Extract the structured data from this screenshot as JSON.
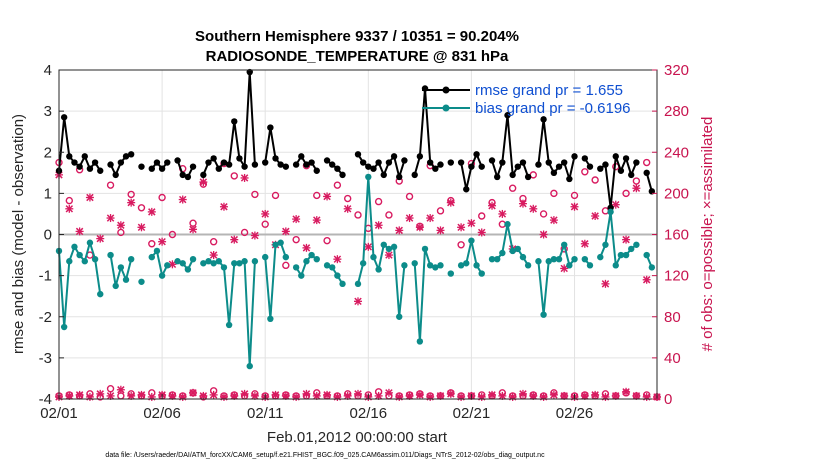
{
  "chart_data": {
    "type": "line",
    "title_line1": "Southern Hemisphere 9337 / 10351 = 90.204%",
    "title_line2": "RADIOSONDE_TEMPERATURE @ 831 hPa",
    "ylabel": "rmse and bias (model - observation)",
    "ylabel_right": "# of obs: o=possible; ×=assimilated",
    "xlabel": "Feb.01,2012 00:00:00 start",
    "footer": "data file: /Users/raeder/DAI/ATM_forcXX/CAM6_setup/f.e21.FHIST_BGC.f09_025.CAM6assim.011/Diags_NTrS_2012-02/obs_diag_output.nc",
    "ylim": [
      -4,
      4
    ],
    "ylim_right": [
      0,
      320
    ],
    "xlim": [
      1,
      30
    ],
    "x_ticks": [
      1,
      6,
      11,
      16,
      21,
      26
    ],
    "x_tick_labels": [
      "02/01",
      "02/06",
      "02/11",
      "02/16",
      "02/21",
      "02/26"
    ],
    "y_ticks": [
      -4,
      -3,
      -2,
      -1,
      0,
      1,
      2,
      3,
      4
    ],
    "y_tick_labels": [
      "-4",
      "-3",
      "-2",
      "-1",
      "0",
      "1",
      "2",
      "3",
      "4"
    ],
    "y_ticks_right": [
      0,
      40,
      80,
      120,
      160,
      200,
      240,
      280,
      320
    ],
    "y_tick_labels_right": [
      "0",
      "40",
      "80",
      "120",
      "160",
      "200",
      "240",
      "280",
      "320"
    ],
    "legend_placement": "top-right",
    "colors": {
      "rmse": "#000000",
      "bias": "#0c8c8a",
      "obs": "#d81b60",
      "zero_line": "#b5b5b5",
      "legend_text": "#0f4fd1"
    },
    "series": [
      {
        "name": "rmse grand pr = 1.655",
        "x": [
          1.0,
          1.25,
          1.5,
          1.75,
          2.0,
          2.25,
          2.5,
          2.75,
          3.0,
          3.5,
          3.75,
          4.0,
          4.25,
          4.5,
          5.0,
          5.5,
          5.75,
          6.0,
          6.25,
          6.75,
          7.0,
          7.25,
          7.5,
          8.0,
          8.25,
          8.5,
          8.75,
          9.0,
          9.25,
          9.5,
          9.75,
          10.0,
          10.25,
          10.5,
          11.0,
          11.25,
          11.5,
          11.75,
          12.0,
          12.5,
          12.75,
          13.0,
          13.25,
          13.5,
          14.0,
          14.25,
          14.5,
          14.75,
          15.5,
          15.75,
          16.0,
          16.25,
          16.5,
          16.75,
          17.0,
          17.25,
          17.5,
          17.75,
          18.25,
          18.5,
          18.75,
          19.0,
          19.25,
          19.5,
          20.0,
          20.5,
          20.75,
          21.0,
          21.25,
          21.5,
          22.0,
          22.25,
          22.5,
          22.75,
          23.0,
          23.25,
          23.5,
          23.75,
          24.25,
          24.5,
          24.75,
          25.0,
          25.25,
          25.5,
          25.75,
          26.0,
          26.5,
          26.75,
          27.25,
          27.5,
          27.75,
          28.0,
          28.25,
          28.5,
          28.75,
          29.0,
          29.5,
          29.75
        ],
        "values": [
          1.55,
          2.85,
          1.9,
          1.75,
          1.65,
          1.9,
          1.6,
          1.75,
          1.55,
          1.7,
          1.45,
          1.75,
          1.9,
          1.95,
          1.65,
          1.6,
          1.75,
          1.6,
          1.75,
          1.8,
          1.45,
          1.4,
          1.65,
          1.45,
          1.75,
          1.85,
          1.6,
          1.75,
          1.7,
          2.75,
          1.85,
          1.65,
          3.95,
          1.7,
          1.75,
          2.6,
          1.85,
          1.7,
          1.65,
          1.7,
          1.9,
          1.7,
          1.75,
          1.55,
          1.8,
          1.7,
          1.6,
          1.45,
          1.95,
          1.75,
          1.65,
          1.6,
          1.75,
          1.45,
          1.75,
          1.9,
          1.4,
          1.8,
          1.45,
          1.9,
          3.55,
          1.75,
          1.6,
          1.7,
          1.75,
          1.75,
          1.1,
          1.65,
          1.95,
          1.65,
          1.8,
          1.4,
          1.75,
          2.9,
          1.45,
          1.65,
          1.75,
          1.4,
          1.7,
          2.8,
          1.75,
          1.5,
          1.65,
          1.75,
          1.35,
          1.9,
          1.85,
          1.65,
          1.6,
          1.7,
          0.65,
          1.9,
          1.55,
          1.85,
          1.45,
          1.75,
          1.5,
          1.05
        ]
      },
      {
        "name": "bias grand pr = -0.6196",
        "x": [
          1.0,
          1.25,
          1.5,
          1.75,
          2.0,
          2.25,
          2.5,
          2.75,
          3.0,
          3.5,
          3.75,
          4.0,
          4.25,
          4.5,
          5.0,
          5.5,
          5.75,
          6.0,
          6.25,
          6.75,
          7.0,
          7.25,
          7.5,
          8.0,
          8.25,
          8.5,
          8.75,
          9.0,
          9.25,
          9.5,
          9.75,
          10.0,
          10.25,
          10.5,
          11.0,
          11.25,
          11.5,
          11.75,
          12.0,
          12.5,
          12.75,
          13.0,
          13.25,
          13.5,
          14.0,
          14.25,
          14.5,
          14.75,
          15.5,
          15.75,
          16.0,
          16.25,
          16.5,
          16.75,
          17.0,
          17.25,
          17.5,
          17.75,
          18.25,
          18.5,
          18.75,
          19.0,
          19.25,
          19.5,
          20.0,
          20.5,
          20.75,
          21.0,
          21.25,
          21.5,
          22.0,
          22.25,
          22.5,
          22.75,
          23.0,
          23.25,
          23.5,
          23.75,
          24.25,
          24.5,
          24.75,
          25.0,
          25.25,
          25.5,
          25.75,
          26.0,
          26.5,
          26.75,
          27.25,
          27.5,
          27.75,
          28.0,
          28.25,
          28.5,
          28.75,
          29.0,
          29.5,
          29.75
        ],
        "values": [
          -0.4,
          -2.25,
          -0.65,
          -0.3,
          -0.5,
          -0.65,
          -0.2,
          -0.6,
          -1.45,
          -0.5,
          -1.25,
          -0.8,
          -1.1,
          -0.6,
          -1.15,
          -0.55,
          -0.4,
          -1.0,
          -0.75,
          -0.65,
          -0.7,
          -0.85,
          -0.6,
          -0.7,
          -0.65,
          -0.7,
          -0.65,
          -0.8,
          -2.2,
          -0.7,
          -0.7,
          -0.65,
          -3.2,
          -0.65,
          -0.55,
          -2.05,
          -0.25,
          -0.2,
          -0.55,
          -0.8,
          -1.0,
          -0.65,
          -0.5,
          -0.6,
          -0.75,
          -0.8,
          -1.0,
          -1.2,
          -1.2,
          -0.7,
          1.4,
          -0.55,
          -0.85,
          -0.25,
          -0.35,
          -0.3,
          -2.0,
          -0.75,
          -0.7,
          -2.6,
          -0.35,
          -0.75,
          -0.8,
          -0.75,
          -0.95,
          -0.75,
          -0.7,
          -0.15,
          -0.75,
          -0.95,
          -0.6,
          -0.6,
          -0.45,
          0.25,
          -0.4,
          -0.35,
          -0.55,
          -0.75,
          -0.65,
          -1.95,
          -0.65,
          -0.6,
          -0.6,
          -0.25,
          -0.75,
          -0.6,
          -0.6,
          -0.75,
          -0.55,
          -0.25,
          0.55,
          -0.75,
          -0.5,
          -0.5,
          -0.35,
          -0.25,
          -0.5,
          -0.8
        ]
      },
      {
        "name": "possible",
        "marker": "circle",
        "x": [
          1.0,
          1.5,
          2.0,
          2.5,
          3.5,
          4.0,
          4.5,
          5.0,
          5.5,
          6.0,
          6.5,
          7.0,
          7.5,
          8.0,
          8.5,
          9.0,
          9.5,
          10.0,
          10.5,
          11.0,
          11.5,
          12.0,
          12.5,
          13.0,
          13.5,
          14.0,
          14.5,
          15.0,
          15.5,
          16.0,
          16.5,
          17.0,
          17.5,
          18.0,
          18.5,
          19.0,
          19.5,
          20.0,
          20.5,
          21.0,
          21.5,
          22.0,
          22.5,
          23.0,
          23.5,
          24.0,
          24.5,
          25.0,
          25.5,
          26.0,
          26.5,
          27.0,
          27.5,
          28.0,
          28.5,
          29.0,
          29.5
        ],
        "values": [
          230,
          193,
          223,
          140,
          208,
          162,
          199,
          186,
          151,
          196,
          160,
          224,
          171,
          209,
          153,
          229,
          217,
          162,
          199,
          170,
          198,
          130,
          155,
          227,
          198,
          154,
          208,
          195,
          179,
          166,
          192,
          179,
          212,
          197,
          168,
          227,
          183,
          193,
          150,
          229,
          178,
          191,
          170,
          205,
          195,
          218,
          180,
          200,
          146,
          198,
          221,
          213,
          183,
          226,
          200,
          212,
          230
        ]
      },
      {
        "name": "assimilated",
        "marker": "x",
        "x": [
          1.0,
          1.5,
          2.0,
          2.5,
          3.0,
          3.5,
          4.0,
          4.5,
          5.0,
          5.5,
          6.0,
          6.5,
          7.0,
          7.5,
          8.0,
          8.5,
          9.0,
          9.5,
          10.0,
          10.5,
          11.0,
          11.5,
          12.0,
          12.5,
          13.0,
          13.5,
          14.0,
          14.5,
          15.0,
          15.5,
          16.0,
          16.5,
          17.0,
          17.5,
          18.0,
          18.5,
          19.0,
          19.5,
          20.0,
          20.5,
          21.0,
          21.5,
          22.0,
          22.5,
          23.0,
          23.5,
          24.0,
          24.5,
          25.0,
          25.5,
          26.0,
          26.5,
          27.0,
          27.5,
          28.0,
          28.5,
          29.0,
          29.5
        ],
        "values": [
          218,
          185,
          163,
          196,
          156,
          176,
          169,
          191,
          167,
          182,
          153,
          131,
          194,
          165,
          211,
          140,
          187,
          155,
          215,
          159,
          180,
          150,
          163,
          175,
          147,
          174,
          197,
          136,
          185,
          95,
          148,
          169,
          140,
          164,
          176,
          167,
          176,
          164,
          191,
          167,
          171,
          162,
          188,
          180,
          146,
          190,
          185,
          160,
          174,
          127,
          187,
          151,
          178,
          112,
          189,
          155,
          205,
          116
        ]
      },
      {
        "name": "possible-floor",
        "marker": "circle",
        "x": [
          1.0,
          1.5,
          2.0,
          2.5,
          3.0,
          3.5,
          4.0,
          4.5,
          5.0,
          5.5,
          6.0,
          6.5,
          7.0,
          7.5,
          8.0,
          8.5,
          9.0,
          9.5,
          10.0,
          10.5,
          11.0,
          11.5,
          12.0,
          12.5,
          13.0,
          13.5,
          14.0,
          14.5,
          15.0,
          15.5,
          16.0,
          16.5,
          17.0,
          17.5,
          18.0,
          18.5,
          19.0,
          19.5,
          20.0,
          20.5,
          21.0,
          21.5,
          22.0,
          22.5,
          23.0,
          23.5,
          24.0,
          24.5,
          25.0,
          25.5,
          26.0,
          26.5,
          27.0,
          27.5,
          28.0,
          28.5,
          29.0,
          29.5,
          30.0
        ],
        "values": [
          3,
          4,
          3,
          5,
          2,
          10,
          3,
          5,
          3,
          6,
          3,
          4,
          3,
          6,
          2,
          8,
          3,
          4,
          3,
          5,
          3,
          3,
          4,
          3,
          3,
          6,
          3,
          3,
          5,
          3,
          4,
          7,
          3,
          3,
          4,
          5,
          3,
          3,
          6,
          3,
          3,
          4,
          3,
          6,
          3,
          3,
          4,
          3,
          6,
          3,
          3,
          4,
          3,
          5,
          3,
          6,
          3,
          4,
          2
        ]
      },
      {
        "name": "assimilated-floor",
        "marker": "x",
        "x": [
          1.0,
          1.5,
          2.0,
          2.5,
          3.0,
          3.5,
          4.0,
          4.5,
          5.0,
          5.5,
          6.0,
          6.5,
          7.0,
          7.5,
          8.0,
          8.5,
          9.0,
          9.5,
          10.0,
          10.5,
          11.0,
          11.5,
          12.0,
          12.5,
          13.0,
          13.5,
          14.0,
          14.5,
          15.0,
          15.5,
          16.0,
          16.5,
          17.0,
          17.5,
          18.0,
          18.5,
          19.0,
          19.5,
          20.0,
          20.5,
          21.0,
          21.5,
          22.0,
          22.5,
          23.0,
          23.5,
          24.0,
          24.5,
          25.0,
          25.5,
          26.0,
          26.5,
          27.0,
          27.5,
          28.0,
          28.5,
          29.0,
          29.5,
          30.0
        ],
        "values": [
          2,
          3,
          4,
          2,
          5,
          3,
          9,
          3,
          4,
          2,
          4,
          3,
          2,
          6,
          3,
          4,
          2,
          3,
          5,
          3,
          2,
          4,
          3,
          2,
          5,
          3,
          4,
          2,
          3,
          5,
          2,
          3,
          6,
          2,
          3,
          4,
          2,
          3,
          5,
          2,
          3,
          2,
          4,
          3,
          2,
          5,
          3,
          2,
          4,
          3,
          2,
          3,
          4,
          2,
          3,
          7,
          3,
          2,
          2
        ]
      }
    ]
  }
}
